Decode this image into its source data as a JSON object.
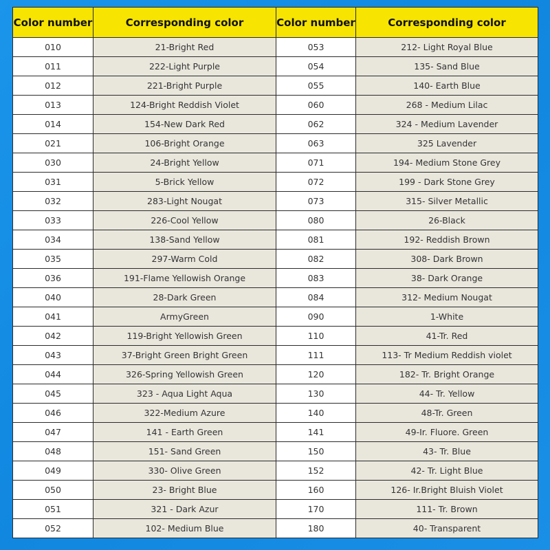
{
  "headers": [
    "Color number",
    "Corresponding color",
    "Color number",
    "Corresponding color"
  ],
  "colors": {
    "background": "#1a8fe6",
    "header": "#f7e400",
    "color_cell": "#e9e6dc",
    "number_cell": "#ffffff"
  },
  "rows": [
    [
      "010",
      "21-Bright Red",
      "053",
      "212- Light Royal Blue"
    ],
    [
      "011",
      "222-Light Purple",
      "054",
      "135- Sand Blue"
    ],
    [
      "012",
      "221-Bright Purple",
      "055",
      "140- Earth Blue"
    ],
    [
      "013",
      "124-Bright Reddish Violet",
      "060",
      "268 - Medium Lilac"
    ],
    [
      "014",
      "154-New Dark Red",
      "062",
      "324 - Medium Lavender"
    ],
    [
      "021",
      "106-Bright Orange",
      "063",
      "325 Lavender"
    ],
    [
      "030",
      "24-Bright Yellow",
      "071",
      "194- Medium Stone Grey"
    ],
    [
      "031",
      "5-Brick Yellow",
      "072",
      "199 - Dark Stone Grey"
    ],
    [
      "032",
      "283-Light Nougat",
      "073",
      "315- Silver Metallic"
    ],
    [
      "033",
      "226-Cool Yellow",
      "080",
      "26-Black"
    ],
    [
      "034",
      "138-Sand Yellow",
      "081",
      "192- Reddish Brown"
    ],
    [
      "035",
      "297-Warm Cold",
      "082",
      "308- Dark Brown"
    ],
    [
      "036",
      "191-Flame Yellowish Orange",
      "083",
      "38- Dark Orange"
    ],
    [
      "040",
      "28-Dark Green",
      "084",
      "312- Medium Nougat"
    ],
    [
      "041",
      "ArmyGreen",
      "090",
      "1-White"
    ],
    [
      "042",
      "119-Bright Yellowish Green",
      "110",
      "41-Tr. Red"
    ],
    [
      "043",
      "37-Bright Green Bright Green",
      "111",
      "113- Tr Medium Reddish violet"
    ],
    [
      "044",
      "326-Spring Yellowish Green",
      "120",
      "182- Tr. Bright Orange"
    ],
    [
      "045",
      "323 - Aqua Light Aqua",
      "130",
      "44- Tr. Yellow"
    ],
    [
      "046",
      "322-Medium Azure",
      "140",
      "48-Tr. Green"
    ],
    [
      "047",
      "141 - Earth Green",
      "141",
      "49-Ir. Fluore. Green"
    ],
    [
      "048",
      "151- Sand Green",
      "150",
      "43- Tr. Blue"
    ],
    [
      "049",
      "330- Olive Green",
      "152",
      "42- Tr. Light Blue"
    ],
    [
      "050",
      "23- Bright Blue",
      "160",
      "126- Ir.Bright Bluish Violet"
    ],
    [
      "051",
      "321 - Dark Azur",
      "170",
      "111- Tr. Brown"
    ],
    [
      "052",
      "102- Medium Blue",
      "180",
      "40- Transparent"
    ]
  ]
}
